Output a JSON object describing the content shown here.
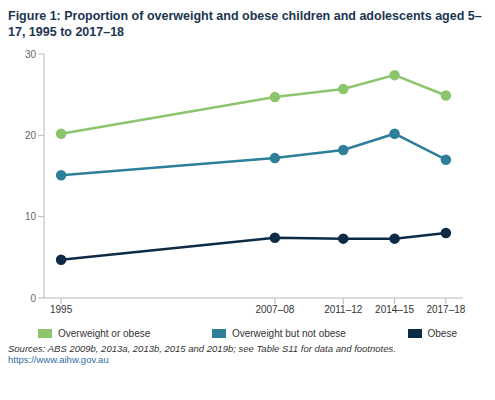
{
  "chart_data": {
    "type": "line",
    "title": "Figure 1: Proportion of overweight and obese children and adolescents aged 5–17, 1995 to 2017–18",
    "x": [
      1995,
      2007.5,
      2011.5,
      2014.5,
      2017.5
    ],
    "xlim": [
      1994,
      2018.5
    ],
    "xticks": [
      {
        "value": 1995,
        "label": "1995"
      },
      {
        "value": 2007.5,
        "label": "2007–08"
      },
      {
        "value": 2011.5,
        "label": "2011–12"
      },
      {
        "value": 2014.5,
        "label": "2014–15"
      },
      {
        "value": 2017.5,
        "label": "2017–18"
      }
    ],
    "ylim": [
      0,
      30
    ],
    "yticks": [
      0,
      10,
      20,
      30
    ],
    "grid": false,
    "legend": "bottom",
    "marker": "circle",
    "series": [
      {
        "name": "Overweight or obese",
        "color": "#8cc56d",
        "values": [
          20.2,
          24.7,
          25.7,
          27.4,
          24.9
        ]
      },
      {
        "name": "Overweight but not obese",
        "color": "#2e7f9a",
        "values": [
          15.1,
          17.2,
          18.2,
          20.2,
          17.0
        ]
      },
      {
        "name": "Obese",
        "color": "#0d2b45",
        "values": [
          4.7,
          7.4,
          7.3,
          7.3,
          8.0
        ]
      }
    ],
    "source": "Sources: ABS 2009b, 2013a, 2013b, 2015 and 2019b; see Table S11 for data and footnotes.",
    "source_url": "https://www.aihw.gov.au"
  }
}
